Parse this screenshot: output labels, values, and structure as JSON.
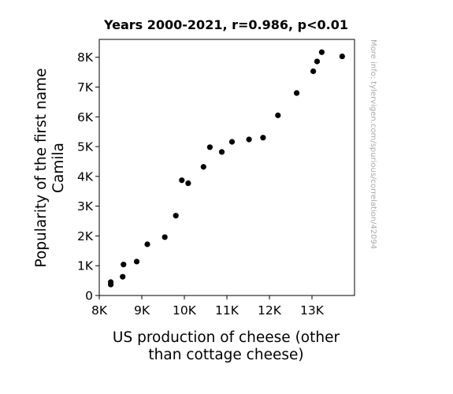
{
  "chart_data": {
    "type": "scatter",
    "title": "Years 2000-2021, r=0.986, p<0.01",
    "xlabel_lines": [
      "US production of cheese (other",
      "than cottage cheese)"
    ],
    "ylabel_lines": [
      "Popularity of the first name",
      "Camila"
    ],
    "credit": "More info: tylervigen.com/spurious/correlation/42094",
    "xlim": [
      8000,
      14000
    ],
    "ylim": [
      0,
      8600
    ],
    "x_ticks": [
      {
        "value": 8000,
        "label": "8K"
      },
      {
        "value": 9000,
        "label": "9K"
      },
      {
        "value": 10000,
        "label": "10K"
      },
      {
        "value": 11000,
        "label": "11K"
      },
      {
        "value": 12000,
        "label": "12K"
      },
      {
        "value": 13000,
        "label": "13K"
      }
    ],
    "y_ticks": [
      {
        "value": 0,
        "label": "0"
      },
      {
        "value": 1000,
        "label": "1K"
      },
      {
        "value": 2000,
        "label": "2K"
      },
      {
        "value": 3000,
        "label": "3K"
      },
      {
        "value": 4000,
        "label": "4K"
      },
      {
        "value": 5000,
        "label": "5K"
      },
      {
        "value": 6000,
        "label": "6K"
      },
      {
        "value": 7000,
        "label": "7K"
      },
      {
        "value": 8000,
        "label": "8K"
      }
    ],
    "grid": false,
    "point_color": "#000000",
    "points": [
      {
        "x": 8270,
        "y": 370
      },
      {
        "x": 8270,
        "y": 450
      },
      {
        "x": 8550,
        "y": 630
      },
      {
        "x": 8570,
        "y": 1040
      },
      {
        "x": 8880,
        "y": 1140
      },
      {
        "x": 9130,
        "y": 1720
      },
      {
        "x": 9540,
        "y": 1960
      },
      {
        "x": 9800,
        "y": 2680
      },
      {
        "x": 9940,
        "y": 3870
      },
      {
        "x": 10090,
        "y": 3770
      },
      {
        "x": 10450,
        "y": 4320
      },
      {
        "x": 10600,
        "y": 4980
      },
      {
        "x": 10880,
        "y": 4820
      },
      {
        "x": 11120,
        "y": 5160
      },
      {
        "x": 11520,
        "y": 5240
      },
      {
        "x": 11850,
        "y": 5300
      },
      {
        "x": 12200,
        "y": 6050
      },
      {
        "x": 12640,
        "y": 6800
      },
      {
        "x": 13030,
        "y": 7530
      },
      {
        "x": 13120,
        "y": 7860
      },
      {
        "x": 13230,
        "y": 8170
      },
      {
        "x": 13710,
        "y": 8030
      }
    ]
  }
}
